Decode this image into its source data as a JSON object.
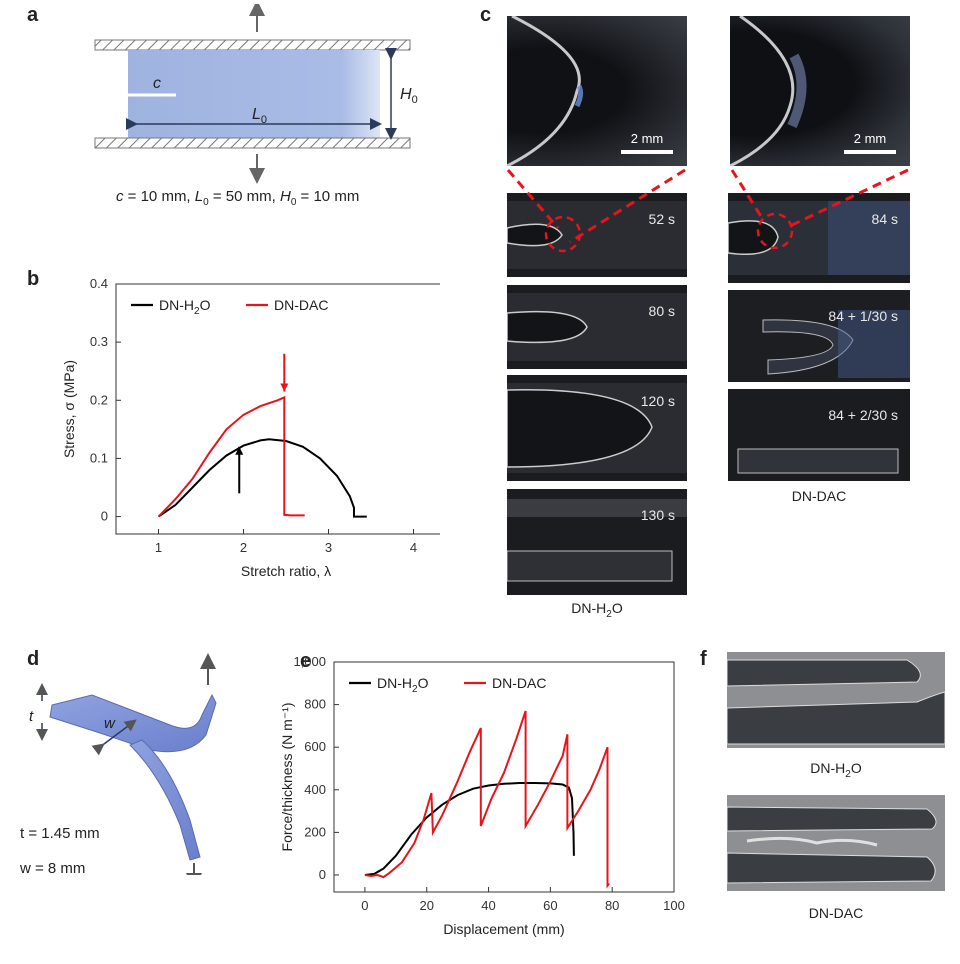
{
  "panels": {
    "a": {
      "label": "a",
      "c_label": "c",
      "L0_label": "L",
      "L0_sub": "0",
      "H0_label": "H",
      "H0_sub": "0",
      "dims": {
        "c": "c",
        "c_val": " = 10 mm, ",
        "L": "L",
        "L_sub": "0",
        "L_val": " = 50 mm, ",
        "H": "H",
        "H_sub": "0",
        "H_val": " = 10 mm"
      }
    },
    "b": {
      "label": "b"
    },
    "c": {
      "label": "c",
      "scale_left": "2 mm",
      "scale_right": "2 mm",
      "times_left": [
        "52 s",
        "80 s",
        "120 s",
        "130 s"
      ],
      "times_right": [
        "84 s",
        "84 + 1/30 s",
        "84 + 2/30 s"
      ],
      "caption_left": "DN-H2O",
      "caption_right": "DN-DAC"
    },
    "d": {
      "label": "d",
      "t_label": "t",
      "w_label": "w",
      "t_dim": "t = 1.45 mm",
      "w_dim": "w = 8 mm"
    },
    "e": {
      "label": "e"
    },
    "f": {
      "label": "f",
      "caption_top": "DN-H2O",
      "caption_bottom": "DN-DAC"
    }
  },
  "chart_data": [
    {
      "id": "b",
      "type": "line",
      "xlabel": "Stretch ratio, λ",
      "ylabel": "Stress, σ (MPa)",
      "xlim": [
        0.5,
        4.5
      ],
      "ylim": [
        -0.03,
        0.4
      ],
      "xticks": [
        "1",
        "2",
        "3",
        "4"
      ],
      "yticks": [
        "0",
        "0.1",
        "0.2",
        "0.3",
        "0.4"
      ],
      "legend": "top-left",
      "series": [
        {
          "name": "DN-H2O",
          "color": "#000000",
          "points": [
            [
              1,
              0
            ],
            [
              1.2,
              0.02
            ],
            [
              1.4,
              0.05
            ],
            [
              1.6,
              0.08
            ],
            [
              1.8,
              0.105
            ],
            [
              2.0,
              0.122
            ],
            [
              2.2,
              0.131
            ],
            [
              2.3,
              0.133
            ],
            [
              2.5,
              0.13
            ],
            [
              2.7,
              0.12
            ],
            [
              2.9,
              0.1
            ],
            [
              3.1,
              0.07
            ],
            [
              3.25,
              0.035
            ],
            [
              3.3,
              0.015
            ],
            [
              3.3,
              0
            ],
            [
              3.45,
              0
            ]
          ]
        },
        {
          "name": "DN-DAC",
          "color": "#e8141b",
          "points": [
            [
              1,
              0
            ],
            [
              1.2,
              0.03
            ],
            [
              1.4,
              0.065
            ],
            [
              1.6,
              0.11
            ],
            [
              1.8,
              0.15
            ],
            [
              2.0,
              0.175
            ],
            [
              2.2,
              0.19
            ],
            [
              2.4,
              0.2
            ],
            [
              2.48,
              0.205
            ],
            [
              2.48,
              0.003
            ],
            [
              2.55,
              0.002
            ],
            [
              2.72,
              0.002
            ]
          ]
        }
      ],
      "arrows": [
        {
          "color": "#000000",
          "x": 1.95,
          "from": 0.04,
          "to": 0.12
        },
        {
          "color": "#e8141b",
          "x": 2.48,
          "from": 0.28,
          "to": 0.215
        }
      ]
    },
    {
      "id": "e",
      "type": "line",
      "xlabel": "Displacement (mm)",
      "ylabel": "Force/thickness (N m⁻¹)",
      "xlim": [
        -10,
        100
      ],
      "ylim": [
        -80,
        1000
      ],
      "xticks": [
        "0",
        "20",
        "40",
        "60",
        "80",
        "100"
      ],
      "yticks": [
        "0",
        "200",
        "400",
        "600",
        "800",
        "1,000"
      ],
      "legend": "top-left",
      "series": [
        {
          "name": "DN-H2O",
          "color": "#000000",
          "points": [
            [
              0,
              0
            ],
            [
              3,
              5
            ],
            [
              6,
              30
            ],
            [
              10,
              90
            ],
            [
              15,
              190
            ],
            [
              20,
              270
            ],
            [
              25,
              330
            ],
            [
              30,
              375
            ],
            [
              35,
              405
            ],
            [
              40,
              420
            ],
            [
              45,
              428
            ],
            [
              50,
              432
            ],
            [
              55,
              432
            ],
            [
              60,
              430
            ],
            [
              64,
              425
            ],
            [
              66,
              410
            ],
            [
              67,
              360
            ],
            [
              67.5,
              200
            ],
            [
              67.6,
              90
            ]
          ]
        },
        {
          "name": "DN-DAC",
          "color": "#e8141b",
          "points": [
            [
              0,
              0
            ],
            [
              2,
              -5
            ],
            [
              4,
              0
            ],
            [
              6,
              -10
            ],
            [
              8,
              10
            ],
            [
              12,
              60
            ],
            [
              16,
              150
            ],
            [
              19,
              260
            ],
            [
              21.5,
              385
            ],
            [
              22,
              200
            ],
            [
              25,
              280
            ],
            [
              30,
              440
            ],
            [
              34,
              580
            ],
            [
              37.5,
              690
            ],
            [
              37.5,
              230
            ],
            [
              41,
              360
            ],
            [
              45,
              480
            ],
            [
              49,
              640
            ],
            [
              52,
              770
            ],
            [
              52,
              230
            ],
            [
              56,
              330
            ],
            [
              60,
              440
            ],
            [
              64,
              560
            ],
            [
              65.5,
              660
            ],
            [
              65.5,
              220
            ],
            [
              69,
              300
            ],
            [
              73,
              400
            ],
            [
              76,
              500
            ],
            [
              78.5,
              600
            ],
            [
              78.5,
              -50
            ],
            [
              79,
              -40
            ]
          ]
        }
      ]
    }
  ]
}
